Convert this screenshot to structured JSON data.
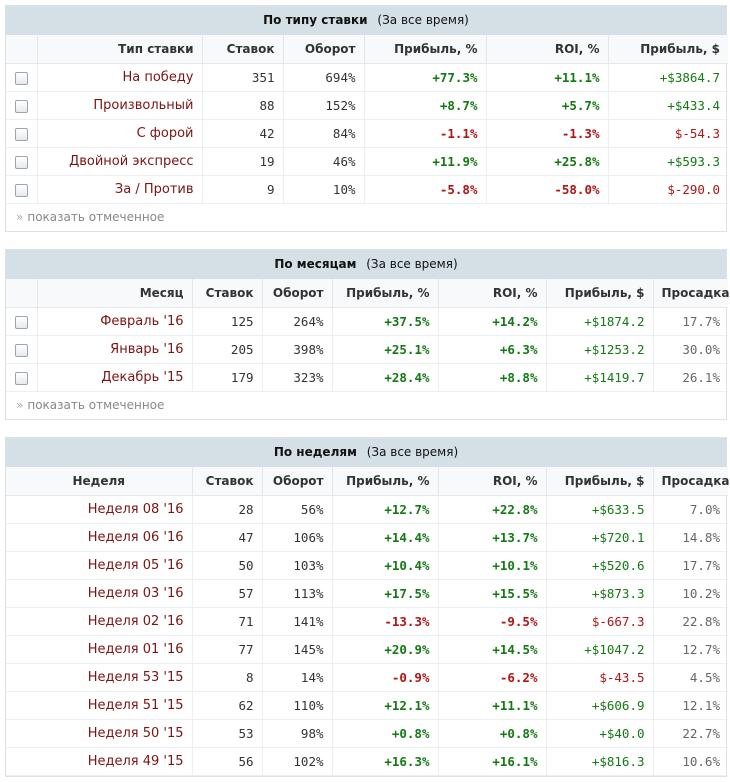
{
  "bet_type": {
    "title": "По типу ставки",
    "subtitle": "(За все время)",
    "columns": [
      "Тип ставки",
      "Ставок",
      "Оборот",
      "Прибыль, %",
      "ROI, %",
      "Прибыль, $"
    ],
    "rows": [
      {
        "name": "На победу",
        "bets": "351",
        "turnover": "694%",
        "profit_pct": "+77.3%",
        "roi": "+11.1%",
        "profit_usd": "+$3864.7"
      },
      {
        "name": "Произвольный",
        "bets": "88",
        "turnover": "152%",
        "profit_pct": "+8.7%",
        "roi": "+5.7%",
        "profit_usd": "+$433.4"
      },
      {
        "name": "С форой",
        "bets": "42",
        "turnover": "84%",
        "profit_pct": "-1.1%",
        "roi": "-1.3%",
        "profit_usd": "$-54.3"
      },
      {
        "name": "Двойной экспресс",
        "bets": "19",
        "turnover": "46%",
        "profit_pct": "+11.9%",
        "roi": "+25.8%",
        "profit_usd": "+$593.3"
      },
      {
        "name": "За / Против",
        "bets": "9",
        "turnover": "10%",
        "profit_pct": "-5.8%",
        "roi": "-58.0%",
        "profit_usd": "$-290.0"
      }
    ],
    "show_selected": "показать отмеченное"
  },
  "by_month": {
    "title": "По месяцам",
    "subtitle": "(За все время)",
    "columns": [
      "Месяц",
      "Ставок",
      "Оборот",
      "Прибыль, %",
      "ROI, %",
      "Прибыль, $",
      "Просадка"
    ],
    "rows": [
      {
        "name": "Февраль '16",
        "bets": "125",
        "turnover": "264%",
        "profit_pct": "+37.5%",
        "roi": "+14.2%",
        "profit_usd": "+$1874.2",
        "drawdown": "17.7%"
      },
      {
        "name": "Январь '16",
        "bets": "205",
        "turnover": "398%",
        "profit_pct": "+25.1%",
        "roi": "+6.3%",
        "profit_usd": "+$1253.2",
        "drawdown": "30.0%"
      },
      {
        "name": "Декабрь '15",
        "bets": "179",
        "turnover": "323%",
        "profit_pct": "+28.4%",
        "roi": "+8.8%",
        "profit_usd": "+$1419.7",
        "drawdown": "26.1%"
      }
    ],
    "show_selected": "показать отмеченное"
  },
  "by_week": {
    "title": "По неделям",
    "subtitle": "(За все время)",
    "columns": [
      "Неделя",
      "Ставок",
      "Оборот",
      "Прибыль, %",
      "ROI, %",
      "Прибыль, $",
      "Просадка"
    ],
    "rows": [
      {
        "name": "Неделя 08 '16",
        "bets": "28",
        "turnover": "56%",
        "profit_pct": "+12.7%",
        "roi": "+22.8%",
        "profit_usd": "+$633.5",
        "drawdown": "7.0%"
      },
      {
        "name": "Неделя 06 '16",
        "bets": "47",
        "turnover": "106%",
        "profit_pct": "+14.4%",
        "roi": "+13.7%",
        "profit_usd": "+$720.1",
        "drawdown": "14.8%"
      },
      {
        "name": "Неделя 05 '16",
        "bets": "50",
        "turnover": "103%",
        "profit_pct": "+10.4%",
        "roi": "+10.1%",
        "profit_usd": "+$520.6",
        "drawdown": "17.7%"
      },
      {
        "name": "Неделя 03 '16",
        "bets": "57",
        "turnover": "113%",
        "profit_pct": "+17.5%",
        "roi": "+15.5%",
        "profit_usd": "+$873.3",
        "drawdown": "10.2%"
      },
      {
        "name": "Неделя 02 '16",
        "bets": "71",
        "turnover": "141%",
        "profit_pct": "-13.3%",
        "roi": "-9.5%",
        "profit_usd": "$-667.3",
        "drawdown": "22.8%"
      },
      {
        "name": "Неделя 01 '16",
        "bets": "77",
        "turnover": "145%",
        "profit_pct": "+20.9%",
        "roi": "+14.5%",
        "profit_usd": "+$1047.2",
        "drawdown": "12.7%"
      },
      {
        "name": "Неделя 53 '15",
        "bets": "8",
        "turnover": "14%",
        "profit_pct": "-0.9%",
        "roi": "-6.2%",
        "profit_usd": "$-43.5",
        "drawdown": "4.5%"
      },
      {
        "name": "Неделя 51 '15",
        "bets": "62",
        "turnover": "110%",
        "profit_pct": "+12.1%",
        "roi": "+11.1%",
        "profit_usd": "+$606.9",
        "drawdown": "12.1%"
      },
      {
        "name": "Неделя 50 '15",
        "bets": "53",
        "turnover": "98%",
        "profit_pct": "+0.8%",
        "roi": "+0.8%",
        "profit_usd": "+$40.0",
        "drawdown": "22.7%"
      },
      {
        "name": "Неделя 49 '15",
        "bets": "56",
        "turnover": "102%",
        "profit_pct": "+16.3%",
        "roi": "+16.1%",
        "profit_usd": "+$816.3",
        "drawdown": "10.6%"
      }
    ]
  },
  "colors": {
    "positive": "#137a13",
    "negative": "#b01414",
    "header_bg": "#d5e0e6",
    "name_text": "#7a1414"
  }
}
